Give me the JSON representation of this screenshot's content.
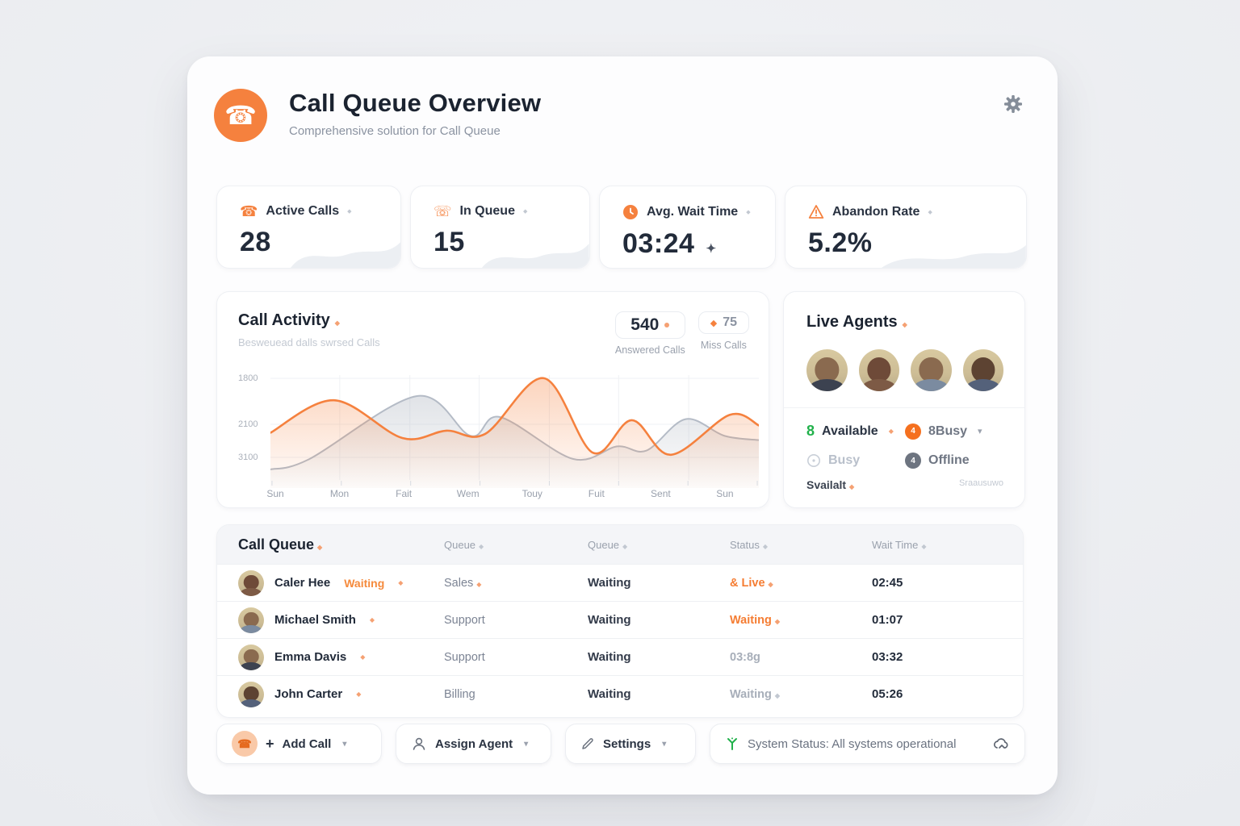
{
  "colors": {
    "accent": "#f5813e",
    "green": "#21b14b",
    "dark": "#1b2330",
    "gray": "#8b93a1",
    "gray_series": "#b9c0ca"
  },
  "header": {
    "title": "Call Queue Overview",
    "subtitle": "Comprehensive solution for Call Queue"
  },
  "stats": [
    {
      "icon": "phone-icon",
      "label": "Active Calls",
      "value": "28"
    },
    {
      "icon": "queue-icon",
      "label": "In Queue",
      "value": "15"
    },
    {
      "icon": "clock-icon",
      "label": "Avg. Wait Time",
      "value": "03:24",
      "cursor": "✦"
    },
    {
      "icon": "warning-icon",
      "label": "Abandon Rate",
      "value": "5.2%"
    }
  ],
  "call_activity": {
    "title": "Call Activity",
    "subtitle": "Besweuead dalls swrsed Calls",
    "legend": [
      {
        "value": "540",
        "label": "Answered Calls"
      },
      {
        "value": "75",
        "label": "Miss Calls"
      }
    ],
    "chart_data": {
      "type": "area",
      "x": [
        "Sun",
        "Mon",
        "Fait",
        "Wem",
        "Touy",
        "Fuit",
        "Sent",
        "Sun"
      ],
      "y_ticks": [
        "1800",
        "2100",
        "3100"
      ],
      "series": [
        {
          "name": "Answered Calls",
          "color": "#f5813e",
          "values": [
            45,
            76,
            40,
            47,
            97,
            57,
            24,
            62
          ]
        },
        {
          "name": "Miss Calls",
          "color": "#b9c0ca",
          "values": [
            10,
            28,
            80,
            55,
            20,
            30,
            58,
            40
          ]
        }
      ],
      "curves": {
        "answered": [
          [
            0,
            45
          ],
          [
            13,
            76
          ],
          [
            27,
            40
          ],
          [
            36,
            47
          ],
          [
            44,
            44
          ],
          [
            56,
            97
          ],
          [
            66,
            26
          ],
          [
            74,
            57
          ],
          [
            82,
            24
          ],
          [
            94,
            62
          ],
          [
            100,
            52
          ]
        ],
        "missed": [
          [
            0,
            10
          ],
          [
            8,
            20
          ],
          [
            30,
            80
          ],
          [
            41,
            42
          ],
          [
            47,
            60
          ],
          [
            62,
            20
          ],
          [
            71,
            32
          ],
          [
            77,
            28
          ],
          [
            85,
            58
          ],
          [
            93,
            42
          ],
          [
            100,
            38
          ]
        ]
      },
      "ylim": [
        0,
        100
      ],
      "grid": true,
      "legend_position": "top-right"
    }
  },
  "live_agents": {
    "title": "Live Agents",
    "avatar_count": 4,
    "available_count": "8",
    "available_label": "Available",
    "busy_badge_count": "4",
    "busy_badge_label": "8Busy",
    "busy_label": "Busy",
    "offline_badge_count": "4",
    "offline_label": "Offline",
    "footer_left": "Svailalt",
    "footer_right": "Sraausuwo"
  },
  "call_queue": {
    "title": "Call Queue",
    "columns": [
      "Queue",
      "Queue",
      "Status",
      "Wait Time"
    ],
    "rows": [
      {
        "name": "Caler Hee",
        "name_suffix": "Waiting",
        "queue": "Sales",
        "queue2": "Waiting",
        "status": "& Live",
        "wait": "02:45"
      },
      {
        "name": "Michael Smith",
        "name_suffix": "",
        "queue": "Support",
        "queue2": "Waiting",
        "status": "Waiting",
        "wait": "01:07"
      },
      {
        "name": "Emma Davis",
        "name_suffix": "",
        "queue": "Support",
        "queue2": "Waiting",
        "status": "03:8g",
        "wait": "03:32"
      },
      {
        "name": "John Carter",
        "name_suffix": "",
        "queue": "Billing",
        "queue2": "Waiting",
        "status": "Waiting",
        "wait": "05:26"
      }
    ]
  },
  "toolbar": {
    "add_call": "Add Call",
    "assign_agent": "Assign Agent",
    "settings": "Settings",
    "system_status": "System Status: All systems operational"
  }
}
